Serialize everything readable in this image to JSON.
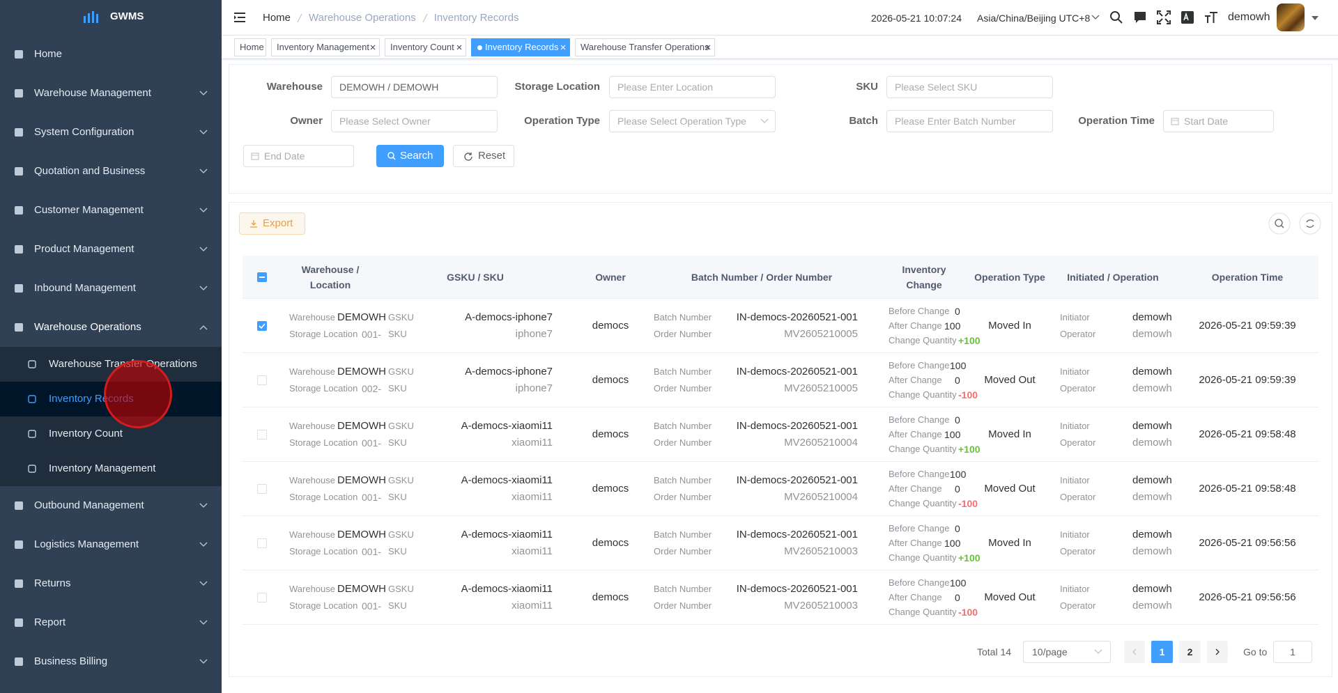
{
  "sidebar": {
    "logo": "GWMS",
    "menu": [
      {
        "label": "Home"
      },
      {
        "label": "Warehouse Management"
      },
      {
        "label": "System Configuration"
      },
      {
        "label": "Quotation and Business"
      },
      {
        "label": "Customer Management"
      },
      {
        "label": "Product Management"
      },
      {
        "label": "Inbound Management"
      },
      {
        "label": "Warehouse Operations",
        "children": [
          {
            "label": "Warehouse Transfer Operations"
          },
          {
            "label": "Inventory Records",
            "active": true
          },
          {
            "label": "Inventory Count"
          },
          {
            "label": "Inventory Management"
          }
        ]
      },
      {
        "label": "Outbound Management"
      },
      {
        "label": "Logistics Management"
      },
      {
        "label": "Returns"
      },
      {
        "label": "Report"
      },
      {
        "label": "Business Billing"
      }
    ]
  },
  "header": {
    "breadcrumb": [
      "Home",
      "Warehouse Operations",
      "Inventory Records"
    ],
    "datetime": "2026-05-21 10:07:24",
    "timezone": "Asia/China/Beijing UTC+8",
    "user": "demowh"
  },
  "tabs": [
    {
      "label": "Home"
    },
    {
      "label": "Inventory Management"
    },
    {
      "label": "Inventory Count"
    },
    {
      "label": "Inventory Records",
      "active": true
    },
    {
      "label": "Warehouse Transfer Operations"
    }
  ],
  "filters": {
    "fields": [
      {
        "label": "Warehouse",
        "value": "DEMOWH / DEMOWH"
      },
      {
        "label": "Storage Location",
        "placeholder": "Please Enter Location"
      },
      {
        "label": "SKU",
        "placeholder": "Please Select SKU"
      },
      {
        "label": "Owner",
        "placeholder": "Please Select Owner"
      },
      {
        "label": "Operation Type",
        "placeholder": "Please Select Operation Type"
      },
      {
        "label": "Batch",
        "placeholder": "Please Enter Batch Number"
      },
      {
        "label": "Operation Time",
        "placeholder": "Start Date"
      }
    ],
    "end_date": "End Date",
    "search": "Search",
    "reset": "Reset"
  },
  "toolbar": {
    "export": "Export"
  },
  "table": {
    "columns": [
      "Warehouse / Location",
      "GSKU / SKU",
      "Owner",
      "Batch Number / Order Number",
      "Inventory Change",
      "Operation Type",
      "Initiated / Operation",
      "Operation Time"
    ],
    "sub_labels": {
      "warehouse": "Warehouse",
      "storage_location": "Storage Location",
      "gsku": "GSKU",
      "sku": "SKU",
      "batch_number": "Batch Number",
      "order_number": "Order Number",
      "before_change": "Before Change",
      "after_change": "After Change",
      "change_quantity": "Change Quantity",
      "initiator": "Initiator",
      "operator": "Operator"
    },
    "rows": [
      {
        "checked": true,
        "warehouse": "DEMOWH",
        "location": "001-",
        "gsku": "A-democs-iphone7",
        "sku": "iphone7",
        "owner": "democs",
        "batch_number": "IN-democs-20260521-001",
        "order_number": "MV2605210005",
        "before": 0,
        "after": 100,
        "change": "+100",
        "operation_type": "Moved In",
        "initiator": "demowh",
        "operator": "demowh",
        "time": "2026-05-21 09:59:39"
      },
      {
        "checked": false,
        "warehouse": "DEMOWH",
        "location": "002-",
        "gsku": "A-democs-iphone7",
        "sku": "iphone7",
        "owner": "democs",
        "batch_number": "IN-democs-20260521-001",
        "order_number": "MV2605210005",
        "before": 100,
        "after": 0,
        "change": "-100",
        "operation_type": "Moved Out",
        "initiator": "demowh",
        "operator": "demowh",
        "time": "2026-05-21 09:59:39"
      },
      {
        "checked": false,
        "warehouse": "DEMOWH",
        "location": "001-",
        "gsku": "A-democs-xiaomi11",
        "sku": "xiaomi11",
        "owner": "democs",
        "batch_number": "IN-democs-20260521-001",
        "order_number": "MV2605210004",
        "before": 0,
        "after": 100,
        "change": "+100",
        "operation_type": "Moved In",
        "initiator": "demowh",
        "operator": "demowh",
        "time": "2026-05-21 09:58:48"
      },
      {
        "checked": false,
        "warehouse": "DEMOWH",
        "location": "001-",
        "gsku": "A-democs-xiaomi11",
        "sku": "xiaomi11",
        "owner": "democs",
        "batch_number": "IN-democs-20260521-001",
        "order_number": "MV2605210004",
        "before": 100,
        "after": 0,
        "change": "-100",
        "operation_type": "Moved Out",
        "initiator": "demowh",
        "operator": "demowh",
        "time": "2026-05-21 09:58:48"
      },
      {
        "checked": false,
        "warehouse": "DEMOWH",
        "location": "001-",
        "gsku": "A-democs-xiaomi11",
        "sku": "xiaomi11",
        "owner": "democs",
        "batch_number": "IN-democs-20260521-001",
        "order_number": "MV2605210003",
        "before": 0,
        "after": 100,
        "change": "+100",
        "operation_type": "Moved In",
        "initiator": "demowh",
        "operator": "demowh",
        "time": "2026-05-21 09:56:56"
      },
      {
        "checked": false,
        "warehouse": "DEMOWH",
        "location": "001-",
        "gsku": "A-democs-xiaomi11",
        "sku": "xiaomi11",
        "owner": "democs",
        "batch_number": "IN-democs-20260521-001",
        "order_number": "MV2605210003",
        "before": 100,
        "after": 0,
        "change": "-100",
        "operation_type": "Moved Out",
        "initiator": "demowh",
        "operator": "demowh",
        "time": "2026-05-21 09:56:56"
      }
    ]
  },
  "pagination": {
    "total": "Total 14",
    "page_size": "10/page",
    "pages": [
      1,
      2
    ],
    "current_page": 1,
    "goto_label": "Go to",
    "goto_value": 1
  }
}
